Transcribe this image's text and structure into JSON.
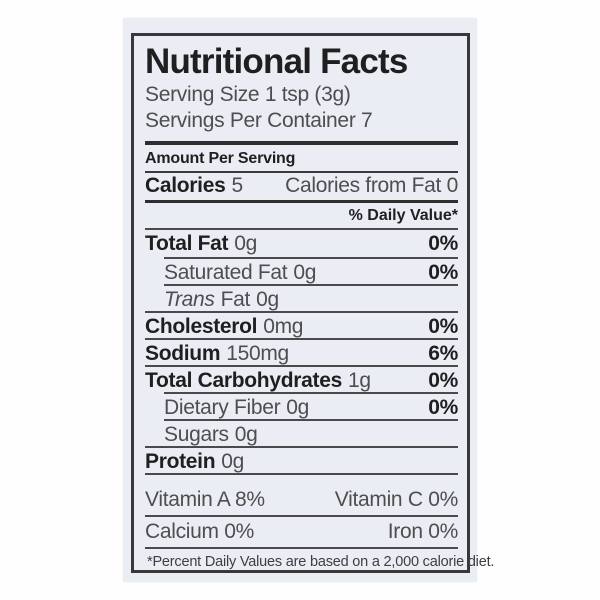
{
  "label": {
    "title": "Nutritional Facts",
    "serving_size": "Serving Size 1 tsp (3g)",
    "servings_per_container": "Servings Per Container 7",
    "amount_per_serving": "Amount Per Serving",
    "calories": {
      "name": "Calories",
      "value": "5",
      "from_fat": "Calories from Fat 0"
    },
    "daily_value_header": "% Daily Value*",
    "nutrients": [
      {
        "name": "Total Fat",
        "amount": "0g",
        "dv": "0%"
      },
      {
        "name": "Saturated Fat",
        "amount": "0g",
        "dv": "0%"
      },
      {
        "name_italic": "Trans",
        "name": "Fat",
        "amount": "0g",
        "dv": ""
      },
      {
        "name": "Cholesterol",
        "amount": "0mg",
        "dv": "0%"
      },
      {
        "name": "Sodium",
        "amount": "150mg",
        "dv": "6%"
      },
      {
        "name": "Total Carbohydrates",
        "amount": "1g",
        "dv": "0%"
      },
      {
        "name": "Dietary Fiber",
        "amount": "0g",
        "dv": "0%"
      },
      {
        "name": "Sugars",
        "amount": "0g",
        "dv": ""
      },
      {
        "name": "Protein",
        "amount": "0g",
        "dv": ""
      }
    ],
    "vitamins": [
      {
        "left": "Vitamin A 8%",
        "right": "Vitamin C  0%"
      },
      {
        "left": "Calcium 0%",
        "right": "Iron  0%"
      }
    ],
    "footnote": "*Percent Daily Values are based on a 2,000 calorie diet."
  },
  "colors": {
    "card_background": "#eaedf4",
    "text_dark": "#1f1f1f",
    "text_light": "#4e4e4e",
    "rule": "#2e2e2e"
  }
}
